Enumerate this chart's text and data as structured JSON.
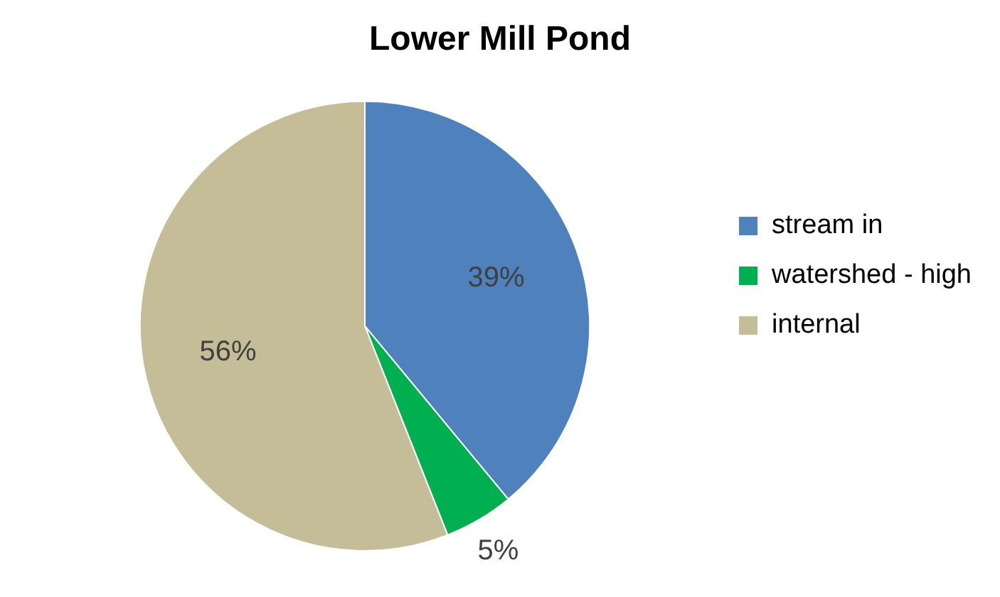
{
  "chart_data": {
    "type": "pie",
    "title": "Lower Mill Pond",
    "categories": [
      "stream in",
      "watershed - high",
      "internal"
    ],
    "values": [
      39,
      5,
      56
    ],
    "value_labels": [
      "39%",
      "5%",
      "56%"
    ],
    "colors": [
      "#4f81bd",
      "#00b050",
      "#c4bd97"
    ],
    "legend": "right"
  }
}
